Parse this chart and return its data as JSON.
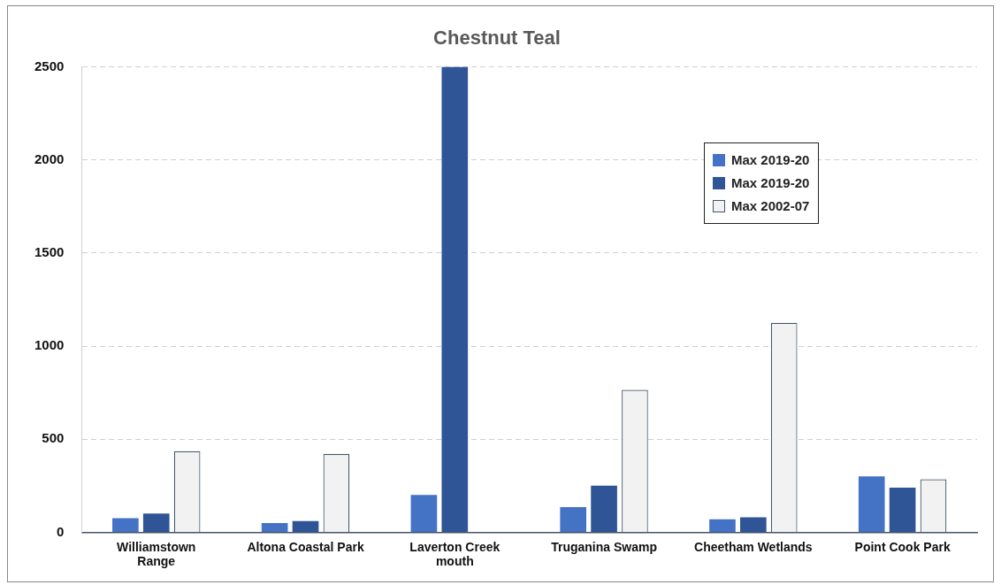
{
  "chart_data": {
    "type": "bar",
    "title": "Chestnut Teal",
    "categories": [
      "Williamstown\nRange",
      "Altona Coastal Park",
      "Laverton Creek\nmouth",
      "Truganina Swamp",
      "Cheetham Wetlands",
      "Point Cook Park"
    ],
    "series": [
      {
        "name": "Max 2019-20",
        "color": "#4472c4",
        "values": [
          75,
          50,
          200,
          135,
          70,
          300
        ]
      },
      {
        "name": "Max 2019-20",
        "color": "#2f5597",
        "values": [
          100,
          60,
          2500,
          250,
          80,
          240
        ]
      },
      {
        "name": "Max 2002-07",
        "color": "#f2f2f2",
        "values": [
          435,
          420,
          null,
          765,
          1125,
          285
        ]
      }
    ],
    "ylim": [
      0,
      2500
    ],
    "yticks": [
      0,
      500,
      1000,
      1500,
      2000,
      2500
    ],
    "grid": "y",
    "legend": "top right"
  }
}
